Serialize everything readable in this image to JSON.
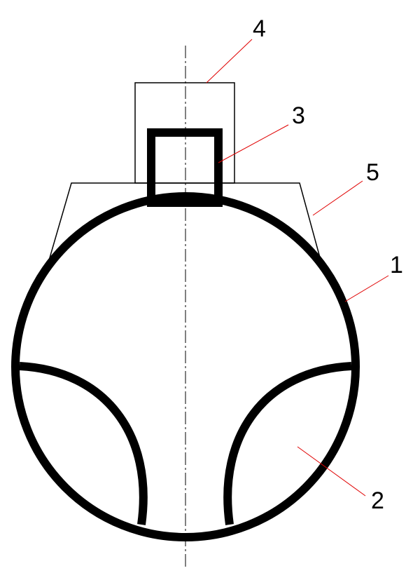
{
  "callouts": [
    {
      "label": "4"
    },
    {
      "label": "3"
    },
    {
      "label": "5"
    },
    {
      "label": "1"
    },
    {
      "label": "2"
    }
  ]
}
